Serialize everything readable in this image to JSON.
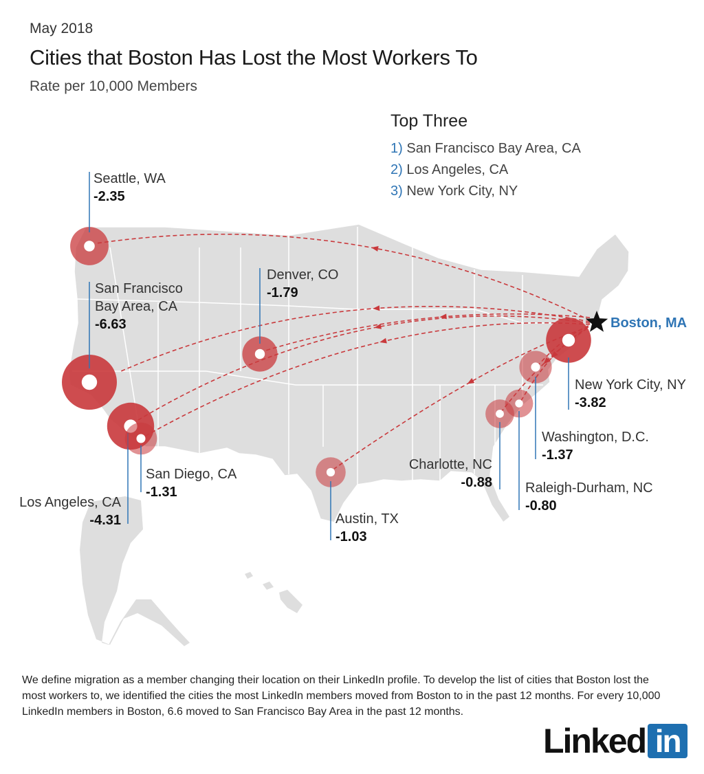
{
  "header": {
    "date": "May 2018",
    "title": "Cities that Boston Has Lost the Most Workers To",
    "subtitle": "Rate per 10,000 Members"
  },
  "top_three": {
    "heading": "Top Three",
    "items": [
      {
        "rank": "1)",
        "name": "San Francisco Bay Area, CA"
      },
      {
        "rank": "2)",
        "name": "Los Angeles, CA"
      },
      {
        "rank": "3)",
        "name": "New York City, NY"
      }
    ]
  },
  "origin": {
    "label": "Boston, MA",
    "marker_icon": "star-icon"
  },
  "colors": {
    "land": "#dedede",
    "border": "#ffffff",
    "circle": "#c9393c",
    "arrow": "#c9393c",
    "leader": "#2f75b5",
    "accent": "#2f75b5"
  },
  "cities": [
    {
      "id": "seattle",
      "name": [
        "Seattle, WA"
      ],
      "value": "-2.35",
      "rate": -2.35
    },
    {
      "id": "sf",
      "name": [
        "San Francisco",
        "Bay Area, CA"
      ],
      "value": "-6.63",
      "rate": -6.63
    },
    {
      "id": "denver",
      "name": [
        "Denver, CO"
      ],
      "value": "-1.79",
      "rate": -1.79
    },
    {
      "id": "la",
      "name": [
        "Los Angeles, CA"
      ],
      "value": "-4.31",
      "rate": -4.31
    },
    {
      "id": "sandiego",
      "name": [
        "San Diego, CA"
      ],
      "value": "-1.31",
      "rate": -1.31
    },
    {
      "id": "austin",
      "name": [
        "Austin, TX"
      ],
      "value": "-1.03",
      "rate": -1.03
    },
    {
      "id": "nyc",
      "name": [
        "New York City, NY"
      ],
      "value": "-3.82",
      "rate": -3.82
    },
    {
      "id": "dc",
      "name": [
        "Washington, D.C."
      ],
      "value": "-1.37",
      "rate": -1.37
    },
    {
      "id": "charlotte",
      "name": [
        "Charlotte, NC"
      ],
      "value": "-0.88",
      "rate": -0.88
    },
    {
      "id": "raleigh",
      "name": [
        "Raleigh-Durham, NC"
      ],
      "value": "-0.80",
      "rate": -0.8
    }
  ],
  "footnote": "We define migration as a member changing their location on their LinkedIn profile. To develop the list of cities that Boston lost the most workers to, we identified the cities the most LinkedIn members moved from Boston to in the past 12 months. For every 10,000 LinkedIn members in Boston, 6.6 moved to San Francisco Bay Area in the past 12 months.",
  "logo": {
    "text": "Linked",
    "box": "in"
  }
}
